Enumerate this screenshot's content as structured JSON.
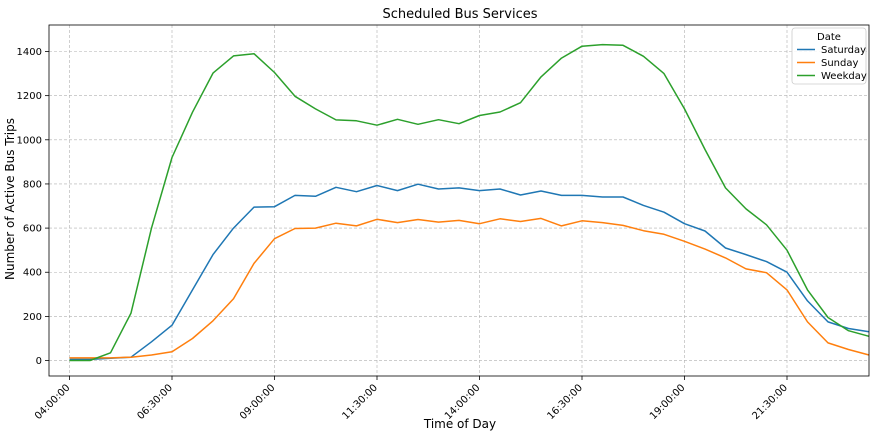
{
  "chart_data": {
    "type": "line",
    "title": "Scheduled Bus Services",
    "xlabel": "Time of Day",
    "ylabel": "Number of Active Bus Trips",
    "x_unit": "hours",
    "xlim": [
      3.5,
      23.5
    ],
    "ylim": [
      -70,
      1520
    ],
    "x_ticks": [
      {
        "value": 4.0,
        "label": "04:00:00"
      },
      {
        "value": 6.5,
        "label": "06:30:00"
      },
      {
        "value": 9.0,
        "label": "09:00:00"
      },
      {
        "value": 11.5,
        "label": "11:30:00"
      },
      {
        "value": 14.0,
        "label": "14:00:00"
      },
      {
        "value": 16.5,
        "label": "16:30:00"
      },
      {
        "value": 19.0,
        "label": "19:00:00"
      },
      {
        "value": 21.5,
        "label": "21:30:00"
      },
      {
        "value": 24.0,
        "label": ""
      }
    ],
    "y_ticks": [
      0,
      200,
      400,
      600,
      800,
      1000,
      1200,
      1400
    ],
    "grid": true,
    "legend": {
      "title": "Date",
      "placement": "top-right"
    },
    "series": [
      {
        "name": "Saturday",
        "color": "#1f77b4",
        "x": [
          4.0,
          4.5,
          5.0,
          5.5,
          6.0,
          6.5,
          7.0,
          7.5,
          8.0,
          8.5,
          9.0,
          9.5,
          10.0,
          10.5,
          11.0,
          11.5,
          12.0,
          12.5,
          13.0,
          13.5,
          14.0,
          14.5,
          15.0,
          15.5,
          16.0,
          16.5,
          17.0,
          17.5,
          18.0,
          18.5,
          19.0,
          19.5,
          20.0,
          20.5,
          21.0,
          21.5,
          22.0,
          22.5,
          23.0,
          23.5
        ],
        "values": [
          5,
          5,
          10,
          15,
          85,
          160,
          320,
          480,
          600,
          695,
          697,
          748,
          744,
          785,
          765,
          793,
          770,
          799,
          777,
          782,
          770,
          777,
          750,
          768,
          748,
          748,
          741,
          741,
          703,
          672,
          620,
          587,
          510,
          480,
          448,
          400,
          270,
          175,
          145,
          130
        ]
      },
      {
        "name": "Sunday",
        "color": "#ff7f0e",
        "x": [
          4.0,
          4.5,
          5.0,
          5.5,
          6.0,
          6.5,
          7.0,
          7.5,
          8.0,
          8.5,
          9.0,
          9.5,
          10.0,
          10.5,
          11.0,
          11.5,
          12.0,
          12.5,
          13.0,
          13.5,
          14.0,
          14.5,
          15.0,
          15.5,
          16.0,
          16.5,
          17.0,
          17.5,
          18.0,
          18.5,
          19.0,
          19.5,
          20.0,
          20.5,
          21.0,
          21.5,
          22.0,
          22.5,
          23.0,
          23.5
        ],
        "values": [
          12,
          12,
          12,
          15,
          25,
          40,
          100,
          180,
          280,
          440,
          552,
          598,
          600,
          622,
          610,
          640,
          625,
          639,
          627,
          635,
          620,
          642,
          630,
          644,
          610,
          633,
          625,
          612,
          588,
          572,
          540,
          505,
          465,
          415,
          398,
          320,
          175,
          80,
          50,
          25
        ]
      },
      {
        "name": "Weekday",
        "color": "#2ca02c",
        "x": [
          4.0,
          4.5,
          5.0,
          5.5,
          6.0,
          6.5,
          7.0,
          7.5,
          8.0,
          8.5,
          9.0,
          9.5,
          10.0,
          10.5,
          11.0,
          11.5,
          12.0,
          12.5,
          13.0,
          13.5,
          14.0,
          14.5,
          15.0,
          15.5,
          16.0,
          16.5,
          17.0,
          17.5,
          18.0,
          18.5,
          19.0,
          19.5,
          20.0,
          20.5,
          21.0,
          21.5,
          22.0,
          22.5,
          23.0,
          23.5
        ],
        "values": [
          0,
          0,
          35,
          215,
          600,
          920,
          1125,
          1302,
          1380,
          1390,
          1305,
          1197,
          1140,
          1090,
          1086,
          1066,
          1093,
          1070,
          1091,
          1073,
          1110,
          1126,
          1168,
          1285,
          1370,
          1424,
          1431,
          1428,
          1378,
          1300,
          1140,
          956,
          782,
          687,
          615,
          500,
          320,
          195,
          135,
          110
        ]
      }
    ]
  }
}
